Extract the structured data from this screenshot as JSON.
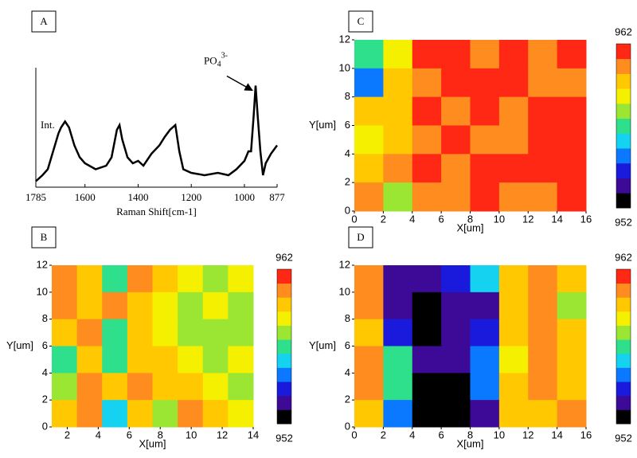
{
  "chart_data": [
    {
      "type": "line",
      "panel_label": "A",
      "x_label": "Raman Shift[cm-1]",
      "y_label": "Int.",
      "annotation": {
        "text": "PO",
        "sub": "4",
        "sup": "3-",
        "x": 958,
        "y": 0.85
      },
      "x": [
        1785,
        1760,
        1740,
        1720,
        1700,
        1690,
        1675,
        1660,
        1640,
        1620,
        1600,
        1560,
        1520,
        1500,
        1480,
        1470,
        1460,
        1440,
        1420,
        1400,
        1380,
        1350,
        1320,
        1300,
        1280,
        1260,
        1245,
        1230,
        1200,
        1150,
        1100,
        1060,
        1030,
        1000,
        985,
        975,
        965,
        958,
        950,
        940,
        930,
        920,
        900,
        877
      ],
      "values": [
        0.05,
        0.1,
        0.15,
        0.3,
        0.45,
        0.5,
        0.55,
        0.5,
        0.35,
        0.25,
        0.2,
        0.15,
        0.18,
        0.25,
        0.48,
        0.52,
        0.4,
        0.25,
        0.2,
        0.22,
        0.18,
        0.28,
        0.35,
        0.42,
        0.48,
        0.52,
        0.3,
        0.15,
        0.12,
        0.1,
        0.12,
        0.1,
        0.15,
        0.22,
        0.3,
        0.3,
        0.6,
        0.85,
        0.6,
        0.3,
        0.1,
        0.2,
        0.28,
        0.35
      ],
      "color": "#000000",
      "xlim": [
        1785,
        877
      ],
      "ylim": [
        0,
        1
      ],
      "xticks": [
        1785,
        1600,
        1400,
        1200,
        1000,
        877
      ]
    },
    {
      "type": "heatmap",
      "panel_label": "B",
      "x_label": "X[um]",
      "y_label": "Y[um]",
      "xlim": [
        1,
        14
      ],
      "ylim": [
        0,
        12
      ],
      "xticks": [
        2,
        4,
        6,
        8,
        10,
        12,
        14
      ],
      "yticks": [
        0,
        2,
        4,
        6,
        8,
        10,
        12
      ],
      "clim": [
        952,
        962
      ],
      "cticks": [
        952,
        962
      ],
      "colormap": [
        "#000000",
        "#3c0a96",
        "#1a1adc",
        "#0a78ff",
        "#14d2f0",
        "#2ee08c",
        "#9ae632",
        "#f5f000",
        "#ffc800",
        "#ff8c1e",
        "#ff2814"
      ],
      "z": [
        [
          961,
          960,
          957,
          961,
          960,
          959,
          958,
          959
        ],
        [
          961,
          960,
          961,
          960,
          959,
          958,
          959,
          958
        ],
        [
          960,
          961,
          957,
          960,
          959,
          958,
          958,
          958
        ],
        [
          957,
          960,
          957,
          960,
          960,
          959,
          958,
          959
        ],
        [
          958,
          961,
          960,
          961,
          960,
          960,
          959,
          958
        ],
        [
          960,
          961,
          956,
          960,
          958,
          961,
          960,
          959
        ]
      ]
    },
    {
      "type": "heatmap",
      "panel_label": "C",
      "x_label": "X[um]",
      "y_label": "Y[um]",
      "xlim": [
        0,
        16
      ],
      "ylim": [
        0,
        12
      ],
      "xticks": [
        0,
        2,
        4,
        6,
        8,
        10,
        12,
        14,
        16
      ],
      "yticks": [
        0,
        2,
        4,
        6,
        8,
        10,
        12
      ],
      "clim": [
        952,
        962
      ],
      "cticks": [
        952,
        962
      ],
      "colormap": [
        "#000000",
        "#3c0a96",
        "#1a1adc",
        "#0a78ff",
        "#14d2f0",
        "#2ee08c",
        "#9ae632",
        "#f5f000",
        "#ffc800",
        "#ff8c1e",
        "#ff2814"
      ],
      "z": [
        [
          957,
          959,
          962,
          962,
          961,
          962,
          961,
          962
        ],
        [
          955,
          960,
          961,
          962,
          962,
          962,
          961,
          961
        ],
        [
          960,
          960,
          962,
          961,
          962,
          961,
          962,
          962
        ],
        [
          959,
          960,
          961,
          962,
          961,
          961,
          962,
          962
        ],
        [
          960,
          961,
          962,
          961,
          962,
          962,
          962,
          962
        ],
        [
          961,
          958,
          961,
          961,
          962,
          961,
          961,
          962
        ]
      ]
    },
    {
      "type": "heatmap",
      "panel_label": "D",
      "x_label": "X[um]",
      "y_label": "Y[um]",
      "xlim": [
        0,
        16
      ],
      "ylim": [
        0,
        12
      ],
      "xticks": [
        0,
        2,
        4,
        6,
        8,
        10,
        12,
        14,
        16
      ],
      "yticks": [
        0,
        2,
        4,
        6,
        8,
        10,
        12
      ],
      "clim": [
        952,
        962
      ],
      "cticks": [
        952,
        962
      ],
      "colormap": [
        "#000000",
        "#3c0a96",
        "#1a1adc",
        "#0a78ff",
        "#14d2f0",
        "#2ee08c",
        "#9ae632",
        "#f5f000",
        "#ffc800",
        "#ff8c1e",
        "#ff2814"
      ],
      "z": [
        [
          961,
          953,
          953,
          954,
          956,
          960,
          961,
          960
        ],
        [
          961,
          953,
          952,
          953,
          953,
          960,
          961,
          958
        ],
        [
          960,
          954,
          952,
          953,
          954,
          960,
          961,
          960
        ],
        [
          961,
          957,
          953,
          953,
          955,
          959,
          961,
          960
        ],
        [
          961,
          957,
          952,
          952,
          955,
          960,
          961,
          960
        ],
        [
          960,
          955,
          952,
          952,
          953,
          960,
          960,
          961
        ]
      ]
    }
  ]
}
